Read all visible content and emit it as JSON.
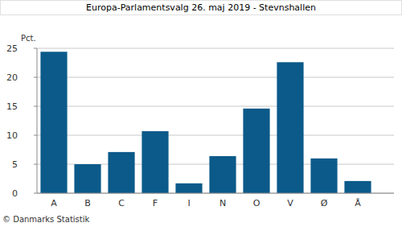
{
  "chart_data": {
    "type": "bar",
    "title": "Europa-Parlamentsvalg 26. maj 2019 - Stevnshallen",
    "y_label": "Pct.",
    "source": "© Danmarks Statistik",
    "categories": [
      "A",
      "B",
      "C",
      "F",
      "I",
      "N",
      "O",
      "V",
      "Ø",
      "Å"
    ],
    "values": [
      24.4,
      5.0,
      7.1,
      10.7,
      1.7,
      6.4,
      14.6,
      22.6,
      6.0,
      2.1
    ],
    "color": "#0b5a8a",
    "ylim": [
      0,
      25
    ],
    "yticks": [
      0,
      5,
      10,
      15,
      20,
      25
    ],
    "grid": true
  }
}
